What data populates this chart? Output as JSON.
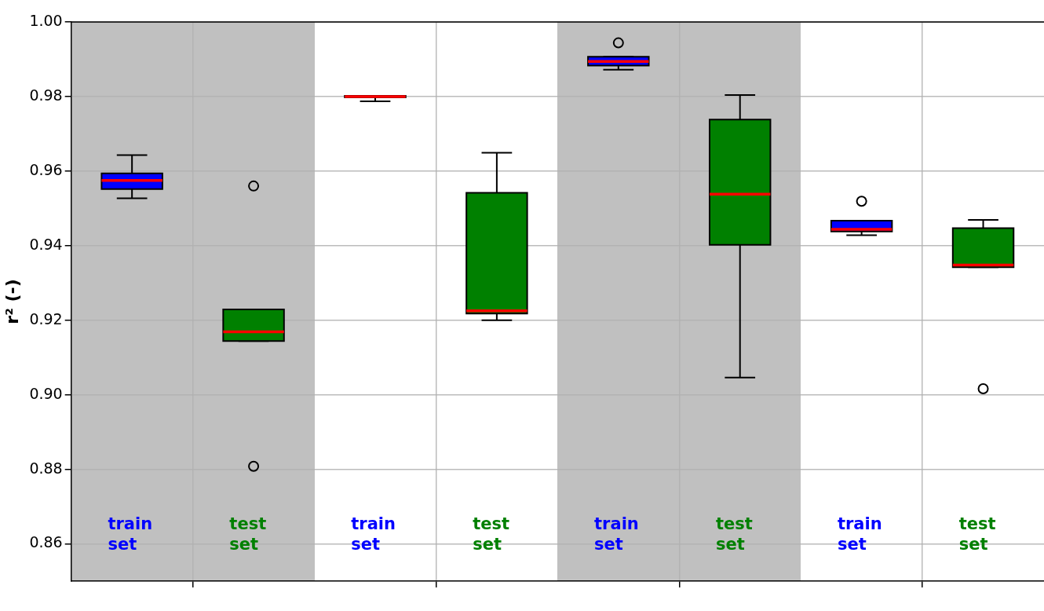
{
  "chart_data": {
    "type": "box",
    "ylabel": "r² (-)",
    "categories": [
      null,
      null,
      null,
      null
    ],
    "ylim": [
      0.85,
      1.0
    ],
    "yticks": [
      {
        "value": 0.86,
        "label": "0.86"
      },
      {
        "value": 0.88,
        "label": "0.88"
      },
      {
        "value": 0.9,
        "label": "0.90"
      },
      {
        "value": 0.92,
        "label": "0.92"
      },
      {
        "value": 0.94,
        "label": "0.94"
      },
      {
        "value": 0.96,
        "label": "0.96"
      },
      {
        "value": 0.98,
        "label": "0.98"
      },
      {
        "value": 1.0,
        "label": "1.00"
      }
    ],
    "grid": true,
    "legend": "bottom",
    "marker": "circle",
    "series": [
      {
        "name": "train set",
        "color": "#0000ff",
        "boxes": [
          {
            "low": 0.9527,
            "q1": 0.9552,
            "median": 0.9575,
            "q3": 0.9594,
            "high": 0.9643
          },
          {
            "low": 0.9787,
            "q1": 0.9798,
            "median": 0.98,
            "q3": 0.9802,
            "high": 0.9802
          },
          {
            "low": 0.9872,
            "q1": 0.9883,
            "median": 0.9894,
            "q3": 0.9907,
            "high": 0.9907,
            "outliers": [
              0.9944
            ]
          },
          {
            "low": 0.9428,
            "q1": 0.9438,
            "median": 0.9444,
            "q3": 0.9467,
            "high": 0.9467,
            "outliers": [
              0.9519
            ]
          }
        ]
      },
      {
        "name": "test set",
        "color": "#008000",
        "boxes": [
          {
            "low": 0.9144,
            "q1": 0.9144,
            "median": 0.9169,
            "q3": 0.9229,
            "high": 0.9229,
            "outliers": [
              0.956,
              0.8808
            ]
          },
          {
            "low": 0.92,
            "q1": 0.9218,
            "median": 0.9225,
            "q3": 0.9542,
            "high": 0.9649
          },
          {
            "low": 0.9046,
            "q1": 0.9402,
            "median": 0.9538,
            "q3": 0.9738,
            "high": 0.9804
          },
          {
            "low": 0.9342,
            "q1": 0.9342,
            "median": 0.9348,
            "q3": 0.9447,
            "high": 0.9469,
            "outliers": [
              0.9016
            ]
          }
        ]
      }
    ]
  }
}
